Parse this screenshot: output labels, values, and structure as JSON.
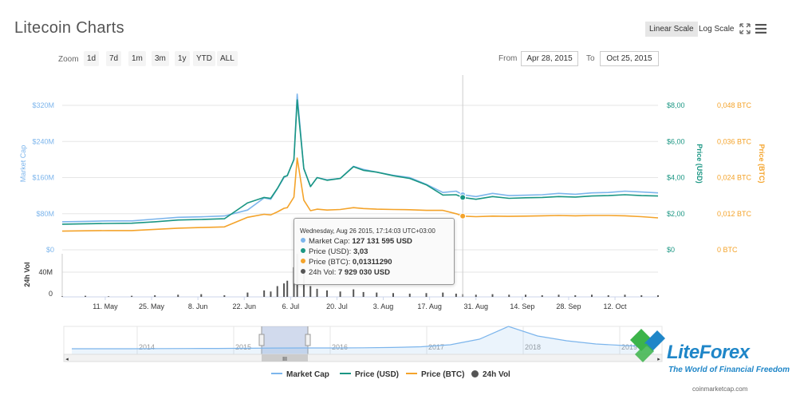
{
  "header": {
    "title": "Litecoin Charts",
    "linear_scale": "Linear Scale",
    "log_scale": "Log Scale"
  },
  "zoom": {
    "label": "Zoom",
    "buttons": [
      "1d",
      "7d",
      "1m",
      "3m",
      "1y",
      "YTD",
      "ALL"
    ],
    "from_label": "From",
    "from_value": "Apr 28, 2015",
    "to_label": "To",
    "to_value": "Oct 25, 2015"
  },
  "chart_data": {
    "type": "line",
    "x_ticks": [
      "11. May",
      "25. May",
      "8. Jun",
      "22. Jun",
      "6. Jul",
      "20. Jul",
      "3. Aug",
      "17. Aug",
      "31. Aug",
      "14. Sep",
      "28. Sep",
      "12. Oct"
    ],
    "y_left": {
      "label": "Market Cap",
      "ticks": [
        "$0",
        "$80M",
        "$160M",
        "$240M",
        "$320M"
      ],
      "range": [
        0,
        320
      ]
    },
    "y_right_usd": {
      "label": "Price (USD)",
      "ticks": [
        "$0",
        "$2,00",
        "$4,00",
        "$6,00",
        "$8,00"
      ],
      "range": [
        0,
        8
      ]
    },
    "y_right_btc": {
      "label": "Price (BTC)",
      "ticks": [
        "0 BTC",
        "0,012 BTC",
        "0,024 BTC",
        "0,036 BTC",
        "0,048 BTC"
      ],
      "range": [
        0,
        0.048
      ]
    },
    "y_volume": {
      "label": "24h Vol",
      "ticks": [
        "0",
        "40M"
      ]
    },
    "day_index": [
      0,
      7,
      14,
      21,
      28,
      35,
      42,
      49,
      56,
      61,
      63,
      65,
      67,
      68,
      70,
      71,
      73,
      75,
      77,
      80,
      84,
      88,
      91,
      95,
      100,
      105,
      110,
      115,
      119,
      121,
      125,
      130,
      135,
      140,
      145,
      150,
      155,
      160,
      165,
      170,
      175,
      180
    ],
    "series": [
      {
        "name": "Market Cap",
        "color": "#7cb5ec",
        "values": [
          62,
          63,
          64,
          64,
          68,
          72,
          73,
          75,
          88,
          115,
          112,
          135,
          160,
          165,
          200,
          345,
          180,
          140,
          160,
          155,
          158,
          185,
          178,
          172,
          165,
          160,
          145,
          127,
          130,
          122,
          118,
          125,
          120,
          121,
          122,
          125,
          123,
          126,
          127,
          130,
          128,
          126
        ]
      },
      {
        "name": "Price (USD)",
        "color": "#1a9683",
        "values": [
          1.42,
          1.44,
          1.46,
          1.47,
          1.55,
          1.65,
          1.68,
          1.72,
          2.6,
          2.9,
          2.85,
          3.4,
          4.05,
          4.1,
          5.0,
          8.3,
          4.5,
          3.5,
          4.0,
          3.85,
          3.95,
          4.6,
          4.4,
          4.3,
          4.1,
          3.95,
          3.6,
          3.03,
          3.05,
          2.9,
          2.8,
          2.95,
          2.85,
          2.88,
          2.9,
          2.95,
          2.92,
          2.98,
          3.0,
          3.05,
          3.0,
          2.98
        ]
      },
      {
        "name": "Price (BTC)",
        "color": "#f4a32a",
        "values": [
          0.0062,
          0.0063,
          0.0064,
          0.0064,
          0.0068,
          0.0072,
          0.0074,
          0.0076,
          0.0108,
          0.0118,
          0.0116,
          0.0126,
          0.0138,
          0.014,
          0.0175,
          0.0305,
          0.0165,
          0.013,
          0.0135,
          0.0132,
          0.0134,
          0.014,
          0.0137,
          0.0135,
          0.0134,
          0.0133,
          0.0131,
          0.0131,
          0.012,
          0.0112,
          0.011,
          0.0112,
          0.0111,
          0.0112,
          0.0113,
          0.0114,
          0.0113,
          0.0114,
          0.0114,
          0.0113,
          0.011,
          0.0106
        ]
      },
      {
        "name": "24h Vol",
        "color": "#555555",
        "values": [
          1,
          2,
          1,
          2,
          3,
          4,
          5,
          3,
          8,
          12,
          10,
          20,
          25,
          30,
          55,
          80,
          45,
          20,
          15,
          12,
          10,
          14,
          9,
          8,
          7,
          6,
          7,
          8,
          6,
          5,
          4,
          5,
          4,
          4,
          3,
          4,
          3,
          4,
          3,
          4,
          3,
          3
        ]
      }
    ],
    "navigator_ticks": [
      "2014",
      "2015",
      "2016",
      "2017",
      "2018",
      "2019"
    ],
    "navigator_values": [
      2,
      2,
      2,
      2.2,
      2.3,
      2.4,
      2.6,
      2.9,
      3,
      3,
      3.2,
      3.6,
      4.5,
      7,
      14,
      30,
      18,
      12,
      8,
      6,
      5
    ]
  },
  "tooltip": {
    "header": "Wednesday, Aug 26 2015, 17:14:03 UTC+03:00",
    "rows": [
      {
        "label": "Market Cap:",
        "value": "127 131 595 USD",
        "color": "#7cb5ec"
      },
      {
        "label": "Price (USD):",
        "value": "3,03",
        "color": "#1a9683"
      },
      {
        "label": "Price (BTC):",
        "value": "0,01311290",
        "color": "#f4a32a"
      },
      {
        "label": "24h Vol:",
        "value": "7 929 030 USD",
        "color": "#555555"
      }
    ]
  },
  "legend": [
    {
      "label": "Market Cap",
      "color": "#7cb5ec",
      "kind": "line"
    },
    {
      "label": "Price (USD)",
      "color": "#1a9683",
      "kind": "line"
    },
    {
      "label": "Price (BTC)",
      "color": "#f4a32a",
      "kind": "line"
    },
    {
      "label": "24h Vol",
      "color": "#555555",
      "kind": "dot"
    }
  ],
  "navigator": {
    "grip": "III",
    "scroll_left": "◂",
    "scroll_right": "▸"
  },
  "credits": "coinmarketcap.com",
  "watermark": {
    "brand": "LiteForex",
    "tagline": "The World of Financial Freedom"
  }
}
